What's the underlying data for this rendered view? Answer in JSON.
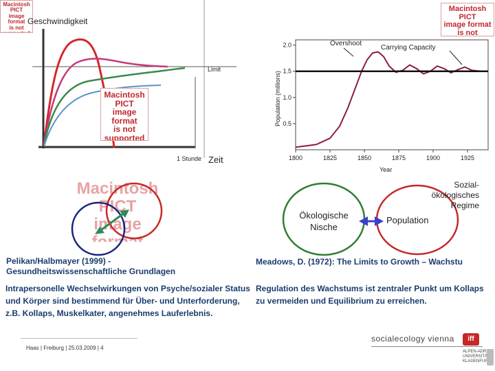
{
  "pict_placeholder": {
    "line1": "Macintosh PICT",
    "line2": "image format",
    "line3": "is not supported"
  },
  "left_chart": {
    "title": "Geschwindigkeit",
    "limit_label": "Limit",
    "x_marker": "1 Stunde",
    "x_label": "Zeit"
  },
  "right_chart": {
    "y_label": "Population (millions)",
    "x_label": "Year",
    "overshoot_label": "Overshoot",
    "capacity_label": "Carrying Capacity"
  },
  "chart_data": {
    "type": "line",
    "xlabel": "Year",
    "ylabel": "Population (millions)",
    "xlim": [
      1800,
      1940
    ],
    "ylim": [
      0,
      2.1
    ],
    "x_ticks": [
      "1800",
      "1825",
      "1850",
      "1875",
      "1900",
      "1925"
    ],
    "y_ticks": [
      "0.5",
      "1.0",
      "1.5",
      "2.0"
    ],
    "series": [
      {
        "x": [
          1800,
          1815,
          1825,
          1832,
          1838,
          1843,
          1848,
          1852,
          1856,
          1860,
          1864,
          1868,
          1873,
          1878,
          1883,
          1888,
          1893,
          1898,
          1903,
          1908,
          1913,
          1918,
          1923,
          1928,
          1935
        ],
        "values": [
          0.05,
          0.1,
          0.22,
          0.45,
          0.8,
          1.15,
          1.5,
          1.72,
          1.85,
          1.87,
          1.78,
          1.6,
          1.48,
          1.52,
          1.62,
          1.55,
          1.45,
          1.5,
          1.6,
          1.55,
          1.47,
          1.53,
          1.58,
          1.52,
          1.5
        ]
      },
      {
        "x": [
          1800,
          1940
        ],
        "values": [
          1.5,
          1.5
        ]
      }
    ],
    "annotations": [
      "Overshoot",
      "Carrying Capacity"
    ]
  },
  "concept": {
    "niche": "Ökologische Nische",
    "population": "Population",
    "regime": "Sozial-ökologisches Regime"
  },
  "citations": {
    "left": "Pelikan/Halbmayer (1999) - Gesundheitswissenschaftliche Grundlagen",
    "right": "Meadows, D. (1972): The Limits to Growth – Wachstu"
  },
  "body": {
    "left": "Intrapersonelle Wechselwirkungen von Psyche/sozialer Status und Körper sind bestimmend für Über- und Unterforderung, z.B. Kollaps, Muskelkater, angenehmes Lauferlebnis.",
    "right": "Regulation des Wachstums ist zentraler Punkt um Kollaps zu vermeiden und Equilibrium zu erreichen."
  },
  "footer": {
    "text": "Haas | Freiburg | 25.03.2009 | 4",
    "brand": "socialecology vienna",
    "iff": "iff",
    "uni1": "ALPEN-ADRIA",
    "uni2": "UNIVERSITÄT",
    "uni3": "KLAGENFURT"
  }
}
